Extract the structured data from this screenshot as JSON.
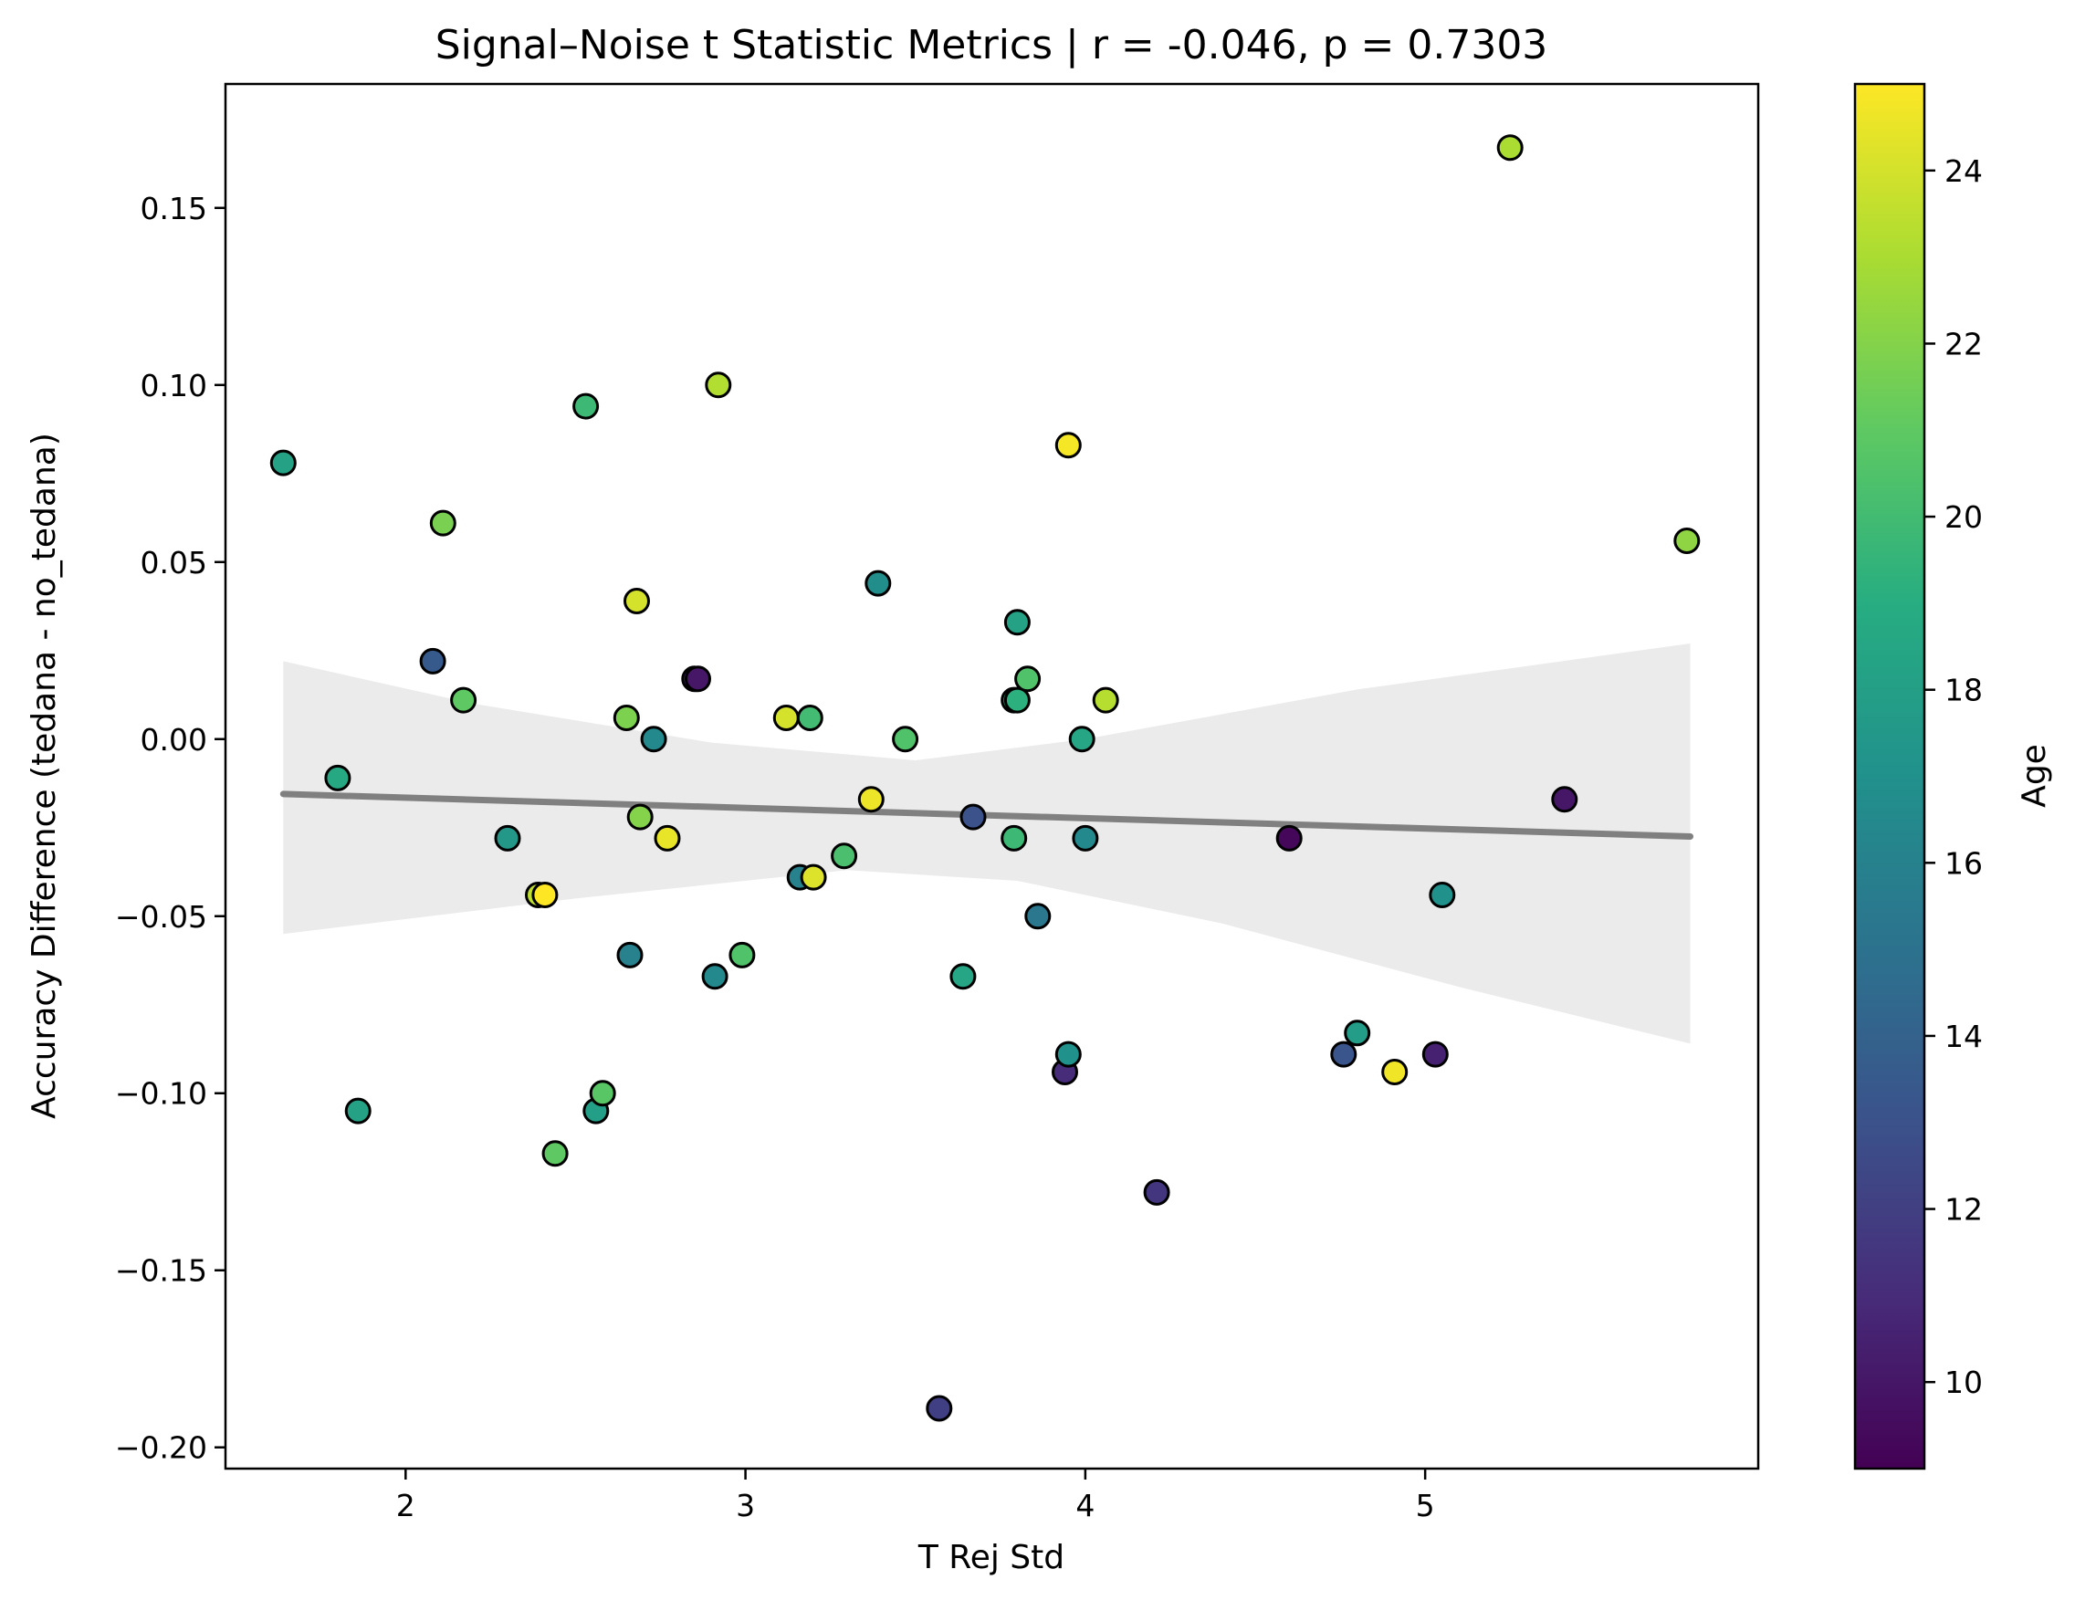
{
  "chart_data": {
    "type": "scatter",
    "title": "Signal–Noise t Statistic Metrics | r = -0.046, p = 0.7303",
    "xlabel": "T Rej Std",
    "ylabel": "Accuracy Difference (tedana - no_tedana)",
    "xlim": [
      1.47,
      5.98
    ],
    "ylim": [
      -0.206,
      0.185
    ],
    "x_ticks": [
      2,
      3,
      4,
      5
    ],
    "x_tick_labels": [
      "2",
      "3",
      "4",
      "5"
    ],
    "y_ticks": [
      -0.2,
      -0.15,
      -0.1,
      -0.05,
      0.0,
      0.05,
      0.1,
      0.15
    ],
    "y_tick_labels": [
      "−0.20",
      "−0.15",
      "−0.10",
      "−0.05",
      "0.00",
      "0.05",
      "0.10",
      "0.15"
    ],
    "grid": false,
    "colorbar": {
      "label": "Age",
      "colormap": "viridis",
      "range": [
        9,
        25
      ],
      "ticks": [
        10,
        12,
        14,
        16,
        18,
        20,
        22,
        24
      ],
      "tick_labels": [
        "10",
        "12",
        "14",
        "16",
        "18",
        "20",
        "22",
        "24"
      ]
    },
    "regression": {
      "x": [
        1.64,
        5.78
      ],
      "y": [
        -0.0155,
        -0.0275
      ],
      "line_color": "#808080",
      "ci_color": "#ebebeb",
      "ci_lower": [
        [
          1.64,
          -0.055
        ],
        [
          2.5,
          -0.045
        ],
        [
          3.3,
          -0.037
        ],
        [
          3.8,
          -0.04
        ],
        [
          4.4,
          -0.052
        ],
        [
          5.1,
          -0.07
        ],
        [
          5.78,
          -0.086
        ]
      ],
      "ci_upper": [
        [
          1.64,
          0.022
        ],
        [
          2.2,
          0.01
        ],
        [
          2.9,
          -0.001
        ],
        [
          3.5,
          -0.006
        ],
        [
          4.0,
          0.0
        ],
        [
          4.8,
          0.014
        ],
        [
          5.78,
          0.027
        ]
      ]
    },
    "points": [
      {
        "x": 1.64,
        "y": 0.078,
        "age": 18.2
      },
      {
        "x": 1.8,
        "y": -0.011,
        "age": 18.7
      },
      {
        "x": 1.86,
        "y": -0.105,
        "age": 18.2
      },
      {
        "x": 2.08,
        "y": 0.022,
        "age": 13.5
      },
      {
        "x": 2.11,
        "y": 0.061,
        "age": 21.7
      },
      {
        "x": 2.17,
        "y": 0.011,
        "age": 21.0
      },
      {
        "x": 2.3,
        "y": -0.028,
        "age": 17.5
      },
      {
        "x": 2.39,
        "y": -0.044,
        "age": 23.5
      },
      {
        "x": 2.41,
        "y": -0.044,
        "age": 25.0
      },
      {
        "x": 2.44,
        "y": -0.117,
        "age": 21.0
      },
      {
        "x": 2.53,
        "y": 0.094,
        "age": 19.8
      },
      {
        "x": 2.56,
        "y": -0.105,
        "age": 18.0
      },
      {
        "x": 2.58,
        "y": -0.1,
        "age": 20.8
      },
      {
        "x": 2.65,
        "y": 0.006,
        "age": 21.8
      },
      {
        "x": 2.66,
        "y": -0.061,
        "age": 16.0
      },
      {
        "x": 2.68,
        "y": 0.039,
        "age": 24.0
      },
      {
        "x": 2.69,
        "y": -0.022,
        "age": 22.0
      },
      {
        "x": 2.73,
        "y": 0.0,
        "age": 16.5
      },
      {
        "x": 2.77,
        "y": -0.028,
        "age": 24.5
      },
      {
        "x": 2.85,
        "y": 0.017,
        "age": 10.5
      },
      {
        "x": 2.86,
        "y": 0.017,
        "age": 10.0
      },
      {
        "x": 2.91,
        "y": -0.067,
        "age": 16.5
      },
      {
        "x": 2.92,
        "y": 0.1,
        "age": 23.2
      },
      {
        "x": 2.99,
        "y": -0.061,
        "age": 20.5
      },
      {
        "x": 3.12,
        "y": 0.006,
        "age": 24.0
      },
      {
        "x": 3.16,
        "y": -0.039,
        "age": 16.0
      },
      {
        "x": 3.19,
        "y": 0.006,
        "age": 20.0
      },
      {
        "x": 3.2,
        "y": -0.039,
        "age": 24.2
      },
      {
        "x": 3.29,
        "y": -0.033,
        "age": 20.3
      },
      {
        "x": 3.37,
        "y": -0.017,
        "age": 24.6
      },
      {
        "x": 3.39,
        "y": 0.044,
        "age": 16.8
      },
      {
        "x": 3.47,
        "y": 0.0,
        "age": 20.5
      },
      {
        "x": 3.57,
        "y": -0.189,
        "age": 12.0
      },
      {
        "x": 3.64,
        "y": -0.067,
        "age": 18.5
      },
      {
        "x": 3.67,
        "y": -0.022,
        "age": 13.0
      },
      {
        "x": 3.79,
        "y": -0.028,
        "age": 19.8
      },
      {
        "x": 3.79,
        "y": 0.011,
        "age": 18.8
      },
      {
        "x": 3.8,
        "y": 0.033,
        "age": 18.2
      },
      {
        "x": 3.8,
        "y": 0.011,
        "age": 19.2
      },
      {
        "x": 3.83,
        "y": 0.017,
        "age": 20.5
      },
      {
        "x": 3.86,
        "y": -0.05,
        "age": 15.3
      },
      {
        "x": 3.94,
        "y": -0.094,
        "age": 11.0
      },
      {
        "x": 3.95,
        "y": -0.089,
        "age": 17.0
      },
      {
        "x": 3.95,
        "y": 0.083,
        "age": 24.8
      },
      {
        "x": 3.99,
        "y": 0.0,
        "age": 18.5
      },
      {
        "x": 4.0,
        "y": -0.028,
        "age": 16.5
      },
      {
        "x": 4.06,
        "y": 0.011,
        "age": 23.3
      },
      {
        "x": 4.21,
        "y": -0.128,
        "age": 11.5
      },
      {
        "x": 4.6,
        "y": -0.028,
        "age": 9.3
      },
      {
        "x": 4.76,
        "y": -0.089,
        "age": 13.2
      },
      {
        "x": 4.8,
        "y": -0.083,
        "age": 17.8
      },
      {
        "x": 4.91,
        "y": -0.094,
        "age": 24.7
      },
      {
        "x": 5.03,
        "y": -0.089,
        "age": 10.5
      },
      {
        "x": 5.05,
        "y": -0.044,
        "age": 17.0
      },
      {
        "x": 5.25,
        "y": 0.167,
        "age": 23.0
      },
      {
        "x": 5.41,
        "y": -0.017,
        "age": 10.0
      },
      {
        "x": 5.77,
        "y": 0.056,
        "age": 22.3
      }
    ]
  }
}
